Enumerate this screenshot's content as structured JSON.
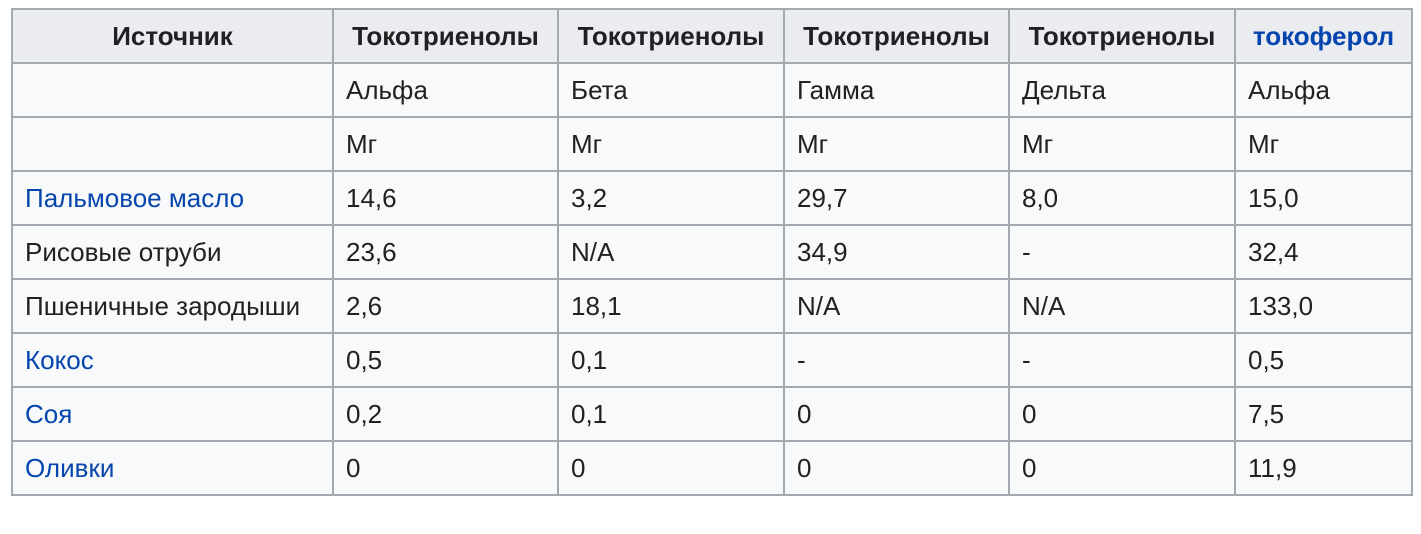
{
  "table": {
    "headers": [
      {
        "label": "Источник",
        "link": false
      },
      {
        "label": "Токотриенолы",
        "link": false
      },
      {
        "label": "Токотриенолы",
        "link": false
      },
      {
        "label": "Токотриенолы",
        "link": false
      },
      {
        "label": "Токотриенолы",
        "link": false
      },
      {
        "label": "токоферол",
        "link": true
      }
    ],
    "subheader_types": [
      "",
      "Альфа",
      "Бета",
      "Гамма",
      "Дельта",
      "Альфа"
    ],
    "subheader_units": [
      "",
      "Мг",
      "Мг",
      "Мг",
      "Мг",
      "Мг"
    ],
    "rows": [
      {
        "source": "Пальмовое масло",
        "link": true,
        "values": [
          "14,6",
          "3,2",
          "29,7",
          "8,0",
          "15,0"
        ]
      },
      {
        "source": "Рисовые отруби",
        "link": false,
        "values": [
          "23,6",
          "N/A",
          "34,9",
          "-",
          "32,4"
        ]
      },
      {
        "source": "Пшеничные зародыши",
        "link": false,
        "values": [
          "2,6",
          "18,1",
          "N/A",
          "N/A",
          "133,0"
        ]
      },
      {
        "source": "Кокос",
        "link": true,
        "values": [
          "0,5",
          "0,1",
          "-",
          "-",
          "0,5"
        ]
      },
      {
        "source": "Соя",
        "link": true,
        "values": [
          "0,2",
          "0,1",
          "0",
          "0",
          "7,5"
        ]
      },
      {
        "source": "Оливки",
        "link": true,
        "values": [
          "0",
          "0",
          "0",
          "0",
          "11,9"
        ]
      }
    ]
  },
  "colors": {
    "link": "#0645ad",
    "border": "#a2a9b1",
    "header_bg": "#eaecf0",
    "cell_bg": "#f8f9fa",
    "text": "#202122"
  }
}
